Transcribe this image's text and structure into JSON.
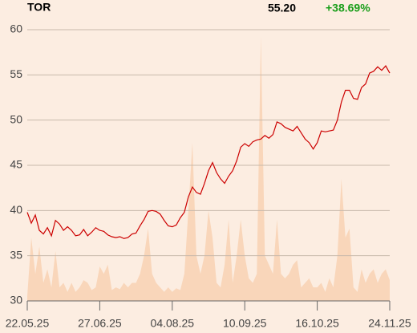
{
  "header": {
    "symbol": "TOR",
    "price": "55.20",
    "change": "+38.69%"
  },
  "chart_data": {
    "type": "line",
    "categories": [
      "22.05.25",
      null,
      null,
      null,
      null,
      null,
      null,
      null,
      null,
      null,
      null,
      null,
      null,
      null,
      null,
      null,
      null,
      null,
      "27.06.25",
      null,
      null,
      null,
      null,
      null,
      null,
      null,
      null,
      null,
      null,
      null,
      null,
      null,
      null,
      null,
      null,
      null,
      "04.08.25",
      null,
      null,
      null,
      null,
      null,
      null,
      null,
      null,
      null,
      null,
      null,
      null,
      null,
      null,
      null,
      null,
      null,
      "10.09.25",
      null,
      null,
      null,
      null,
      null,
      null,
      null,
      null,
      null,
      null,
      null,
      null,
      null,
      null,
      null,
      null,
      null,
      "16.10.25",
      null,
      null,
      null,
      null,
      null,
      null,
      null,
      null,
      null,
      null,
      null,
      null,
      null,
      null,
      null,
      null,
      null,
      "24.11.25"
    ],
    "series": [
      {
        "color": "#cc0000",
        "values": [
          39.8,
          38.6,
          39.5,
          37.8,
          37.4,
          38.1,
          37.2,
          38.9,
          38.5,
          37.8,
          38.2,
          37.8,
          37.2,
          37.3,
          37.9,
          37.2,
          37.6,
          38.1,
          37.8,
          37.7,
          37.3,
          37.1,
          37.0,
          37.1,
          36.9,
          37.0,
          37.4,
          37.5,
          38.3,
          39.0,
          39.9,
          40.0,
          39.9,
          39.6,
          38.9,
          38.3,
          38.2,
          38.4,
          39.2,
          39.8,
          41.5,
          42.6,
          42.0,
          41.8,
          43.0,
          44.4,
          45.3,
          44.2,
          43.5,
          43.0,
          43.8,
          44.4,
          45.5,
          47.0,
          47.4,
          47.1,
          47.6,
          47.8,
          47.9,
          48.3,
          48.0,
          48.4,
          49.8,
          49.6,
          49.2,
          49.0,
          48.8,
          49.3,
          48.6,
          47.9,
          47.5,
          46.8,
          47.5,
          48.8,
          48.7,
          48.8,
          48.9,
          50.0,
          52.0,
          53.3,
          53.3,
          52.4,
          52.3,
          53.6,
          54.0,
          55.2,
          55.4,
          55.9,
          55.5,
          56.0,
          55.2
        ]
      }
    ],
    "volume": {
      "color": "#f9d6ba",
      "values": [
        30.5,
        37,
        33,
        36,
        32,
        33.5,
        31.5,
        35.5,
        31.5,
        32,
        31,
        32,
        31,
        31.5,
        32.3,
        32,
        31.2,
        31.5,
        33.8,
        33,
        34,
        31.2,
        31.5,
        31.3,
        32,
        31.5,
        32,
        32,
        33,
        35,
        38,
        33,
        32,
        31.5,
        31,
        31.5,
        31,
        31.4,
        31.2,
        33,
        40,
        47.5,
        35,
        33,
        35,
        40,
        37,
        32,
        31.5,
        34,
        39,
        32,
        35,
        39,
        35,
        32.5,
        32,
        33,
        59.3,
        35,
        34,
        33,
        39,
        33,
        32.5,
        33,
        34,
        34.5,
        31.5,
        32,
        32.5,
        31.5,
        31.5,
        32,
        31,
        32.5,
        31.5,
        35,
        43.5,
        37,
        38,
        31.5,
        31,
        33.5,
        32,
        33,
        33.5,
        32,
        33,
        33.5,
        32.3
      ]
    },
    "ylim": [
      30,
      60
    ],
    "yticks": [
      30,
      35,
      40,
      45,
      50,
      55,
      60
    ],
    "grid": true,
    "change_color": "#1a9e1a"
  }
}
